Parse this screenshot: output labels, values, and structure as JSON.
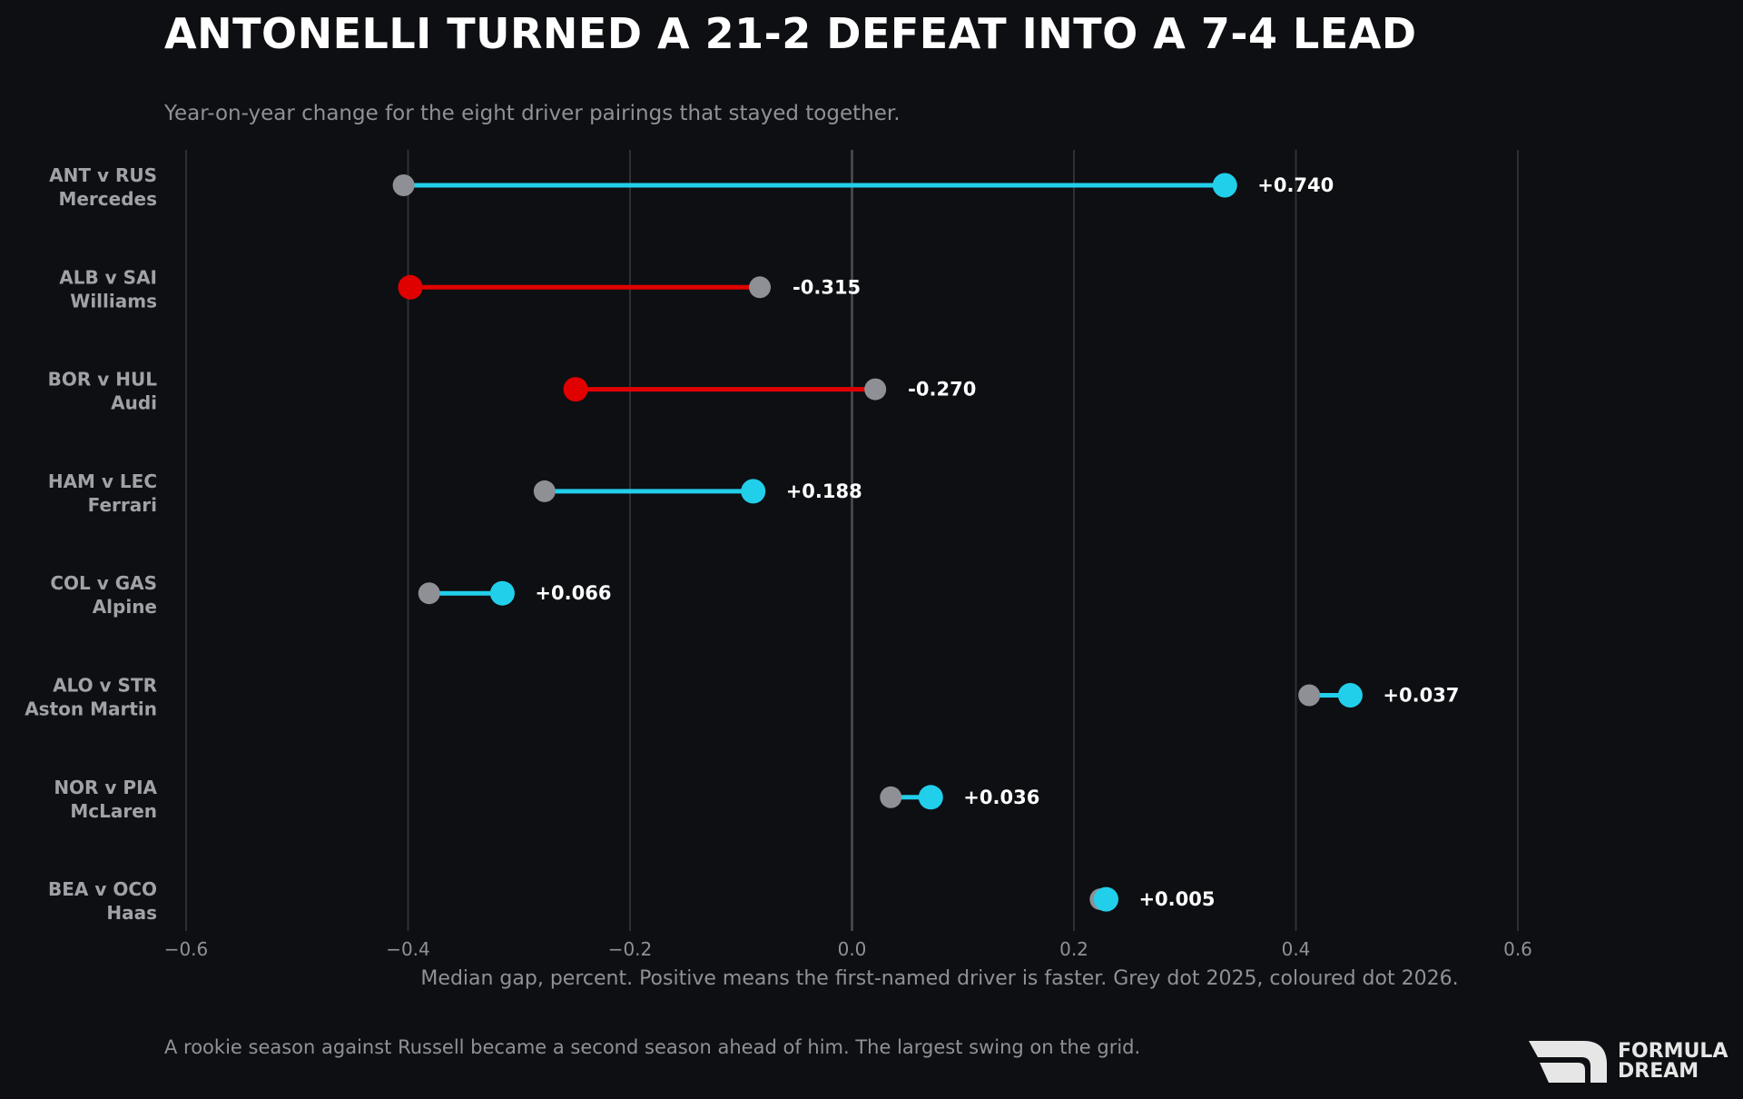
{
  "title": "ANTONELLI TURNED A 21-2 DEFEAT INTO A 7-4 LEAD",
  "subtitle": "Year-on-year change for the eight driver pairings that stayed together.",
  "footnote": "A rookie season against Russell became a second season ahead of him. The largest swing on the grid.",
  "brand": {
    "line1": "FORMULA",
    "line2": "DREAM"
  },
  "colors": {
    "background": "#0d0f13",
    "grey_dot": "#8e9096",
    "positive": "#22cfea",
    "negative": "#e00000",
    "grid": "#2d3036",
    "zero_line": "#4a4d54",
    "label": "#a0a2a8",
    "value_label": "#ffffff"
  },
  "chart_data": {
    "type": "dumbbell",
    "xlabel": "Median gap, percent. Positive means the first-named driver is faster. Grey dot 2025, coloured dot 2026.",
    "xlim": [
      -0.6,
      0.6
    ],
    "xticks": [
      "−0.6",
      "−0.4",
      "−0.2",
      "0.0",
      "0.2",
      "0.4",
      "0.6"
    ],
    "xtick_values": [
      -0.6,
      -0.4,
      -0.2,
      0.0,
      0.2,
      0.4,
      0.6
    ],
    "grid": "vertical",
    "rows": [
      {
        "pair": "ANT v RUS",
        "team": "Mercedes",
        "v2025": -0.404,
        "v2026": 0.336,
        "change": "+0.740"
      },
      {
        "pair": "ALB v SAI",
        "team": "Williams",
        "v2025": -0.083,
        "v2026": -0.398,
        "change": "-0.315"
      },
      {
        "pair": "BOR v HUL",
        "team": "Audi",
        "v2025": 0.021,
        "v2026": -0.249,
        "change": "-0.270"
      },
      {
        "pair": "HAM v LEC",
        "team": "Ferrari",
        "v2025": -0.277,
        "v2026": -0.089,
        "change": "+0.188"
      },
      {
        "pair": "COL v GAS",
        "team": "Alpine",
        "v2025": -0.381,
        "v2026": -0.315,
        "change": "+0.066"
      },
      {
        "pair": "ALO v STR",
        "team": "Aston Martin",
        "v2025": 0.412,
        "v2026": 0.449,
        "change": "+0.037"
      },
      {
        "pair": "NOR v PIA",
        "team": "McLaren",
        "v2025": 0.035,
        "v2026": 0.071,
        "change": "+0.036"
      },
      {
        "pair": "BEA v OCO",
        "team": "Haas",
        "v2025": 0.224,
        "v2026": 0.229,
        "change": "+0.005"
      }
    ]
  }
}
